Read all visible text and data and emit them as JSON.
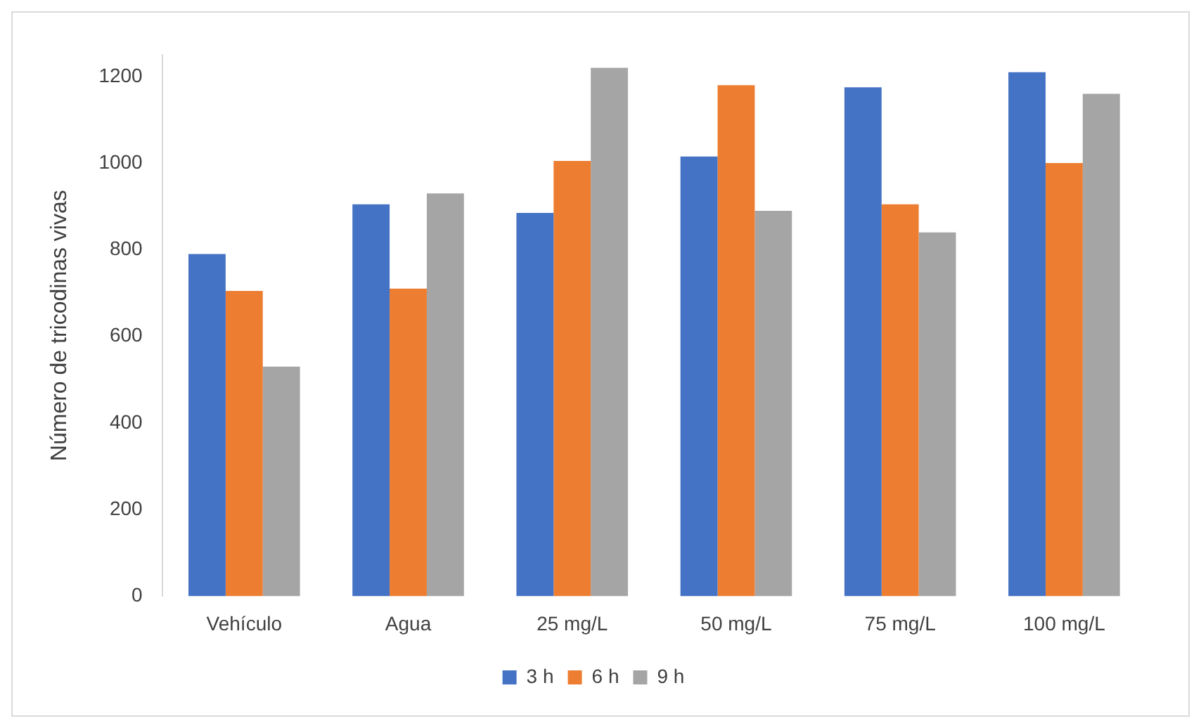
{
  "chart_data": {
    "type": "bar",
    "ylabel": "Número de tricodinas vivas",
    "categories": [
      "Vehículo",
      "Agua",
      "25 mg/L",
      "50 mg/L",
      "75 mg/L",
      "100 mg/L"
    ],
    "series": [
      {
        "name": "3 h",
        "color": "#4472c4",
        "values": [
          790,
          905,
          885,
          1015,
          1175,
          1210
        ]
      },
      {
        "name": "6 h",
        "color": "#ed7d31",
        "values": [
          705,
          710,
          1005,
          1180,
          905,
          1000
        ]
      },
      {
        "name": "9 h",
        "color": "#a5a5a5",
        "values": [
          530,
          930,
          1220,
          890,
          840,
          1160
        ]
      }
    ],
    "ylim": [
      0,
      1250
    ],
    "yticks": [
      0,
      200,
      400,
      600,
      800,
      1000,
      1200
    ],
    "grid": false,
    "legend": "bottom"
  }
}
